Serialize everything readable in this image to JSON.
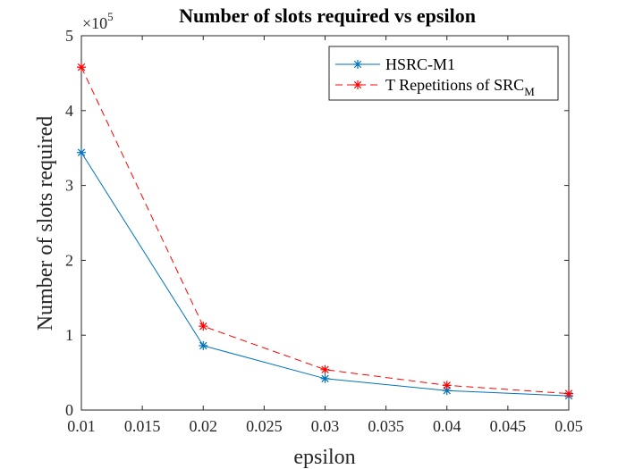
{
  "chart_data": {
    "type": "line",
    "title": "Number of slots required vs epsilon",
    "xlabel": "epsilon",
    "ylabel": "Number of slots required",
    "multiplier": {
      "base": "×10",
      "exponent": "5"
    },
    "xlim": [
      0.01,
      0.05
    ],
    "ylim": [
      0,
      5
    ],
    "xticks": [
      "0.01",
      "0.015",
      "0.02",
      "0.025",
      "0.03",
      "0.035",
      "0.04",
      "0.045",
      "0.05"
    ],
    "xtick_values": [
      0.01,
      0.015,
      0.02,
      0.025,
      0.03,
      0.035,
      0.04,
      0.045,
      0.05
    ],
    "yticks": [
      "0",
      "1",
      "2",
      "3",
      "4",
      "5"
    ],
    "ytick_values": [
      0,
      1,
      2,
      3,
      4,
      5
    ],
    "grid": false,
    "legend_position": "top-right",
    "x": [
      0.01,
      0.02,
      0.03,
      0.04,
      0.05
    ],
    "series": [
      {
        "name": "HSRC-M1",
        "color": "#0072BD",
        "style": "solid",
        "marker": "asterisk",
        "values": [
          3.44,
          0.86,
          0.42,
          0.26,
          0.19
        ]
      },
      {
        "name": "T Repetitions of SRC",
        "name_subscript": "M",
        "color": "#FF0000",
        "style": "dashed",
        "marker": "asterisk",
        "values": [
          4.58,
          1.12,
          0.54,
          0.33,
          0.22
        ]
      }
    ]
  }
}
